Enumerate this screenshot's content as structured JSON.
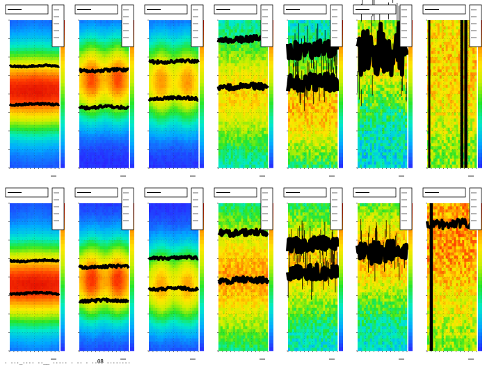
{
  "canvas": {
    "title": "",
    "background": "#ffffff",
    "footer_text": ". ..._.... ..__ ..... . .. . ..08 ........"
  },
  "colors": {
    "palette": "rainbow",
    "cold": "#2a2aff",
    "mid": "#22dd22",
    "hot": "#ff2a00",
    "marker": "#000000"
  },
  "chart_data": [
    {
      "type": "heatmap",
      "row": 0,
      "col": 0,
      "pattern": "smooth",
      "profile_centers": [
        0.48
      ],
      "profile_width": 0.3,
      "peak": 1.0,
      "bands": [
        0.31,
        0.57
      ],
      "band_noise": 0.005,
      "band_thickness": 4,
      "noise": 0.02,
      "title": "",
      "xlabel": "",
      "ylabel": ""
    },
    {
      "type": "heatmap",
      "row": 0,
      "col": 1,
      "pattern": "lobes",
      "profile_centers": [
        0.4
      ],
      "profile_width": 0.3,
      "peak": 0.92,
      "bands": [
        0.34,
        0.59
      ],
      "band_noise": 0.01,
      "band_thickness": 4,
      "noise": 0.03,
      "title": "",
      "xlabel": "",
      "ylabel": ""
    },
    {
      "type": "heatmap",
      "row": 0,
      "col": 2,
      "pattern": "lobes",
      "profile_centers": [
        0.42
      ],
      "profile_width": 0.32,
      "peak": 0.82,
      "bands": [
        0.28,
        0.53
      ],
      "band_noise": 0.01,
      "band_thickness": 4,
      "noise": 0.03,
      "title": "",
      "xlabel": "",
      "ylabel": ""
    },
    {
      "type": "heatmap",
      "row": 0,
      "col": 3,
      "pattern": "noisy",
      "profile_centers": [
        0.5
      ],
      "profile_width": 0.4,
      "peak": 0.65,
      "bands": [
        0.13,
        0.45
      ],
      "band_noise": 0.02,
      "band_thickness": 5,
      "noise": 0.15,
      "title": "",
      "xlabel": "",
      "ylabel": ""
    },
    {
      "type": "heatmap",
      "row": 0,
      "col": 4,
      "pattern": "noisy",
      "profile_centers": [
        0.6
      ],
      "profile_width": 0.4,
      "peak": 0.72,
      "bands": [
        0.2,
        0.42
      ],
      "band_noise": 0.06,
      "band_thickness": 6,
      "noise": 0.2,
      "title": "",
      "xlabel": "",
      "ylabel": ""
    },
    {
      "type": "heatmap",
      "row": 0,
      "col": 5,
      "pattern": "noisy",
      "profile_centers": [
        0.25
      ],
      "profile_width": 0.4,
      "peak": 0.62,
      "bands": [
        0.2
      ],
      "band_noise": 0.18,
      "band_thickness": 6,
      "noise": 0.25,
      "title": "",
      "xlabel": "",
      "ylabel": ""
    },
    {
      "type": "heatmap",
      "row": 0,
      "col": 6,
      "pattern": "flat",
      "profile_centers": [
        0.3
      ],
      "profile_width": 0.6,
      "peak": 0.62,
      "bands": [],
      "vlines": [
        0.05,
        0.7,
        0.72,
        0.78,
        0.8
      ],
      "band_noise": 0.0,
      "band_thickness": 0,
      "noise": 0.25,
      "title": "",
      "xlabel": "",
      "ylabel": ""
    },
    {
      "type": "heatmap",
      "row": 1,
      "col": 0,
      "pattern": "smooth",
      "profile_centers": [
        0.55
      ],
      "profile_width": 0.3,
      "peak": 1.0,
      "bands": [
        0.39,
        0.61
      ],
      "band_noise": 0.005,
      "band_thickness": 4,
      "noise": 0.02,
      "title": "",
      "xlabel": "",
      "ylabel": ""
    },
    {
      "type": "heatmap",
      "row": 1,
      "col": 1,
      "pattern": "lobes",
      "profile_centers": [
        0.52
      ],
      "profile_width": 0.3,
      "peak": 0.95,
      "bands": [
        0.43,
        0.66
      ],
      "band_noise": 0.01,
      "band_thickness": 4,
      "noise": 0.03,
      "title": "",
      "xlabel": "",
      "ylabel": ""
    },
    {
      "type": "heatmap",
      "row": 1,
      "col": 2,
      "pattern": "lobes",
      "profile_centers": [
        0.56
      ],
      "profile_width": 0.3,
      "peak": 0.8,
      "bands": [
        0.37,
        0.58
      ],
      "band_noise": 0.01,
      "band_thickness": 4,
      "noise": 0.03,
      "title": "",
      "xlabel": "",
      "ylabel": ""
    },
    {
      "type": "heatmap",
      "row": 1,
      "col": 3,
      "pattern": "noisy",
      "profile_centers": [
        0.5
      ],
      "profile_width": 0.45,
      "peak": 0.78,
      "bands": [
        0.2,
        0.52
      ],
      "band_noise": 0.02,
      "band_thickness": 5,
      "noise": 0.15,
      "title": "",
      "xlabel": "",
      "ylabel": ""
    },
    {
      "type": "heatmap",
      "row": 1,
      "col": 4,
      "pattern": "noisy",
      "profile_centers": [
        0.4
      ],
      "profile_width": 0.4,
      "peak": 0.7,
      "bands": [
        0.28,
        0.47
      ],
      "band_noise": 0.05,
      "band_thickness": 6,
      "noise": 0.2,
      "title": "",
      "xlabel": "",
      "ylabel": ""
    },
    {
      "type": "heatmap",
      "row": 1,
      "col": 5,
      "pattern": "noisy",
      "profile_centers": [
        0.35
      ],
      "profile_width": 0.4,
      "peak": 0.75,
      "bands": [
        0.33
      ],
      "band_noise": 0.08,
      "band_thickness": 6,
      "noise": 0.2,
      "title": "",
      "xlabel": "",
      "ylabel": ""
    },
    {
      "type": "heatmap",
      "row": 1,
      "col": 6,
      "pattern": "flat",
      "profile_centers": [
        0.2
      ],
      "profile_width": 0.7,
      "peak": 0.82,
      "bands": [
        0.14
      ],
      "vlines": [
        0.08,
        0.1
      ],
      "band_noise": 0.03,
      "band_thickness": 4,
      "noise": 0.25,
      "title": "",
      "xlabel": "",
      "ylabel": ""
    }
  ]
}
